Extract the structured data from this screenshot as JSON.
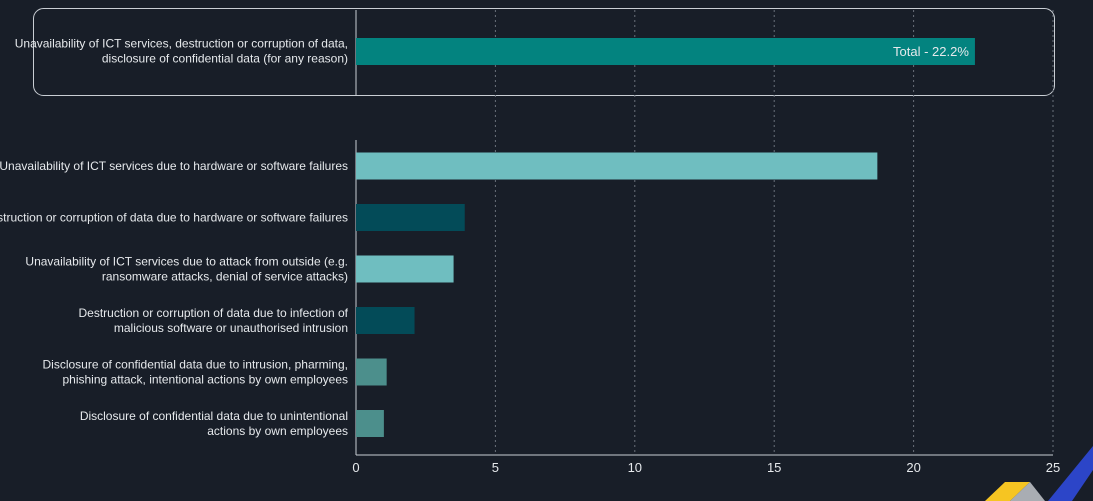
{
  "chart_data": [
    {
      "type": "bar",
      "orientation": "horizontal",
      "categories": [
        [
          "Unavailability of ICT services, destruction or corruption of data,",
          "disclosure of confidential data (for any reason)"
        ]
      ],
      "values": [
        22.2
      ],
      "data_labels": [
        "Total - 22.2%"
      ],
      "colors": [
        "#03837f"
      ]
    },
    {
      "type": "bar",
      "orientation": "horizontal",
      "categories": [
        [
          "Unavailability of ICT services due to hardware or software failures"
        ],
        [
          "Destruction or corruption of data due to hardware or software failures"
        ],
        [
          "Unavailability of ICT services due to attack from outside (e.g.",
          "ransomware attacks, denial of service attacks)"
        ],
        [
          "Destruction or corruption of data due to infection of",
          "malicious software or unauthorised intrusion"
        ],
        [
          "Disclosure of confidential data due to intrusion, pharming,",
          "phishing attack, intentional actions by own employees"
        ],
        [
          "Disclosure of confidential data due to unintentional",
          "actions by own employees"
        ]
      ],
      "values": [
        18.7,
        3.9,
        3.5,
        2.1,
        1.1,
        1.0
      ],
      "colors": [
        "#6fbec0",
        "#034b58",
        "#6fbec0",
        "#034b58",
        "#4c8f8c",
        "#4c8f8c"
      ],
      "xlim": [
        0,
        25
      ],
      "xticks": [
        "0",
        "5",
        "10",
        "15",
        "20",
        "25"
      ],
      "grid": "vertical dashed",
      "xlabel": "",
      "ylabel": ""
    }
  ]
}
